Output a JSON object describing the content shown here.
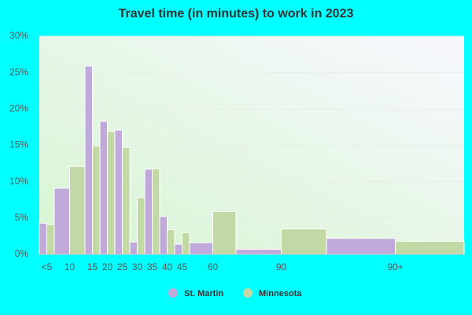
{
  "chart_data": {
    "type": "bar",
    "title": "Travel time (in minutes) to work in 2023",
    "categories": [
      "<5",
      "10",
      "15",
      "20",
      "25",
      "30",
      "35",
      "40",
      "45",
      "60",
      "90",
      "90+"
    ],
    "series": [
      {
        "name": "St. Martin",
        "color": "#c0a9db",
        "values": [
          4.3,
          9.1,
          25.9,
          18.3,
          17.1,
          1.7,
          11.7,
          5.2,
          1.4,
          1.6,
          0.7,
          2.2
        ]
      },
      {
        "name": "Minnesota",
        "color": "#c3d9a5",
        "values": [
          4.1,
          12.1,
          14.9,
          16.9,
          14.7,
          7.8,
          11.8,
          3.4,
          3.0,
          5.9,
          3.5,
          1.8
        ]
      }
    ],
    "ylim": [
      0,
      30
    ],
    "yticks": [
      {
        "value": 0,
        "label": "0%"
      },
      {
        "value": 5,
        "label": "5%"
      },
      {
        "value": 10,
        "label": "10%"
      },
      {
        "value": 15,
        "label": "15%"
      },
      {
        "value": 20,
        "label": "20%"
      },
      {
        "value": 25,
        "label": "25%"
      },
      {
        "value": 30,
        "label": "30%"
      }
    ],
    "grid": true,
    "legend": "bottom"
  }
}
